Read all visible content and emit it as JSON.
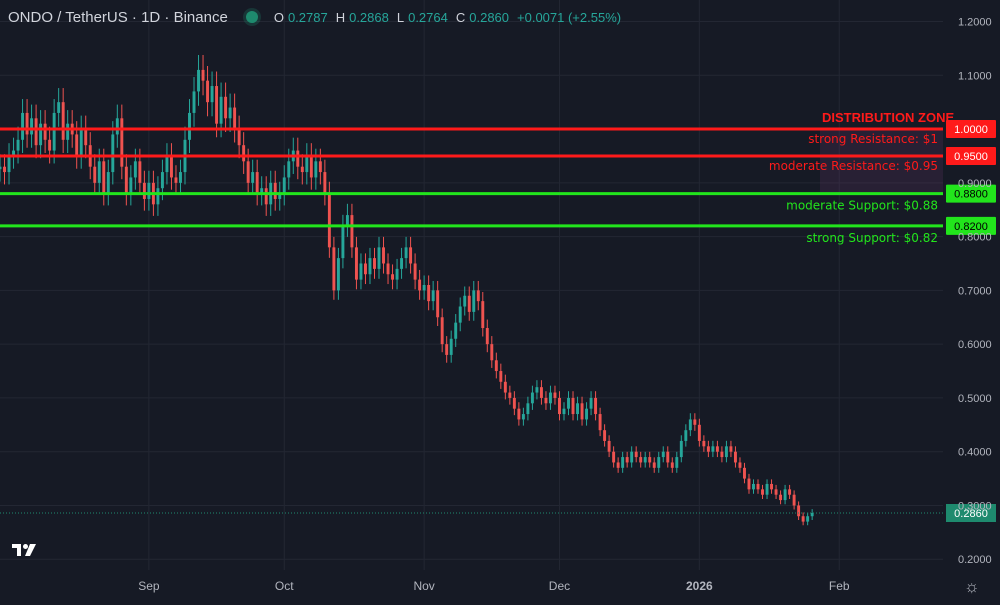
{
  "header": {
    "symbol_line": "ONDO / TetherUS · 1D · Binance",
    "open_label": "O",
    "open": "0.2787",
    "high_label": "H",
    "high": "0.2868",
    "low_label": "L",
    "low": "0.2764",
    "close_label": "C",
    "close": "0.2860",
    "change": "+0.0071 (+2.55%)"
  },
  "colors": {
    "background": "#161a25",
    "grid": "#232733",
    "up": "#26a69a",
    "down": "#ef5350",
    "resistance": "#ff1a1a",
    "support": "#22e51c",
    "last_price": "#1e8a6e"
  },
  "chart_data": {
    "type": "candlestick",
    "title": "",
    "ylim": [
      0.18,
      1.24
    ],
    "y_ticks": [
      "1.2000",
      "1.1000",
      "0.9000",
      "0.8000",
      "0.7000",
      "0.6000",
      "0.5000",
      "0.4000",
      "0.3000",
      "0.2000"
    ],
    "x_ticks": [
      "Sep",
      "Oct",
      "Nov",
      "Dec",
      "2026",
      "Feb"
    ],
    "x_range": [
      "2025-07-30",
      "2026-02-24"
    ],
    "x_tick_dates": [
      "2025-09-01",
      "2025-10-01",
      "2025-11-01",
      "2025-12-01",
      "2026-01-01",
      "2026-02-01"
    ],
    "levels": [
      {
        "price": 1.0,
        "label": "strong Resistance: $1",
        "axis_label": "1.0000",
        "kind": "resistance"
      },
      {
        "price": 0.95,
        "label": "moderate Resistance: $0.95",
        "axis_label": "0.9500",
        "kind": "resistance"
      },
      {
        "price": 0.88,
        "label": "moderate Support: $0.88",
        "axis_label": "0.8800",
        "kind": "support"
      },
      {
        "price": 0.82,
        "label": "strong Support: $0.82",
        "axis_label": "0.8200",
        "kind": "support"
      }
    ],
    "zone_label": "DISTRIBUTION ZONE",
    "last_price": "0.2860",
    "candles_start": "2025-07-30",
    "closes": [
      0.93,
      0.92,
      0.95,
      0.96,
      0.98,
      1.03,
      0.99,
      1.02,
      0.97,
      1.01,
      0.98,
      0.96,
      1.03,
      1.05,
      0.98,
      1.01,
      0.99,
      0.95,
      1.0,
      0.97,
      0.93,
      0.9,
      0.94,
      0.88,
      0.92,
      0.99,
      1.02,
      0.93,
      0.88,
      0.91,
      0.94,
      0.9,
      0.87,
      0.9,
      0.86,
      0.89,
      0.92,
      0.95,
      0.91,
      0.9,
      0.92,
      0.98,
      1.03,
      1.07,
      1.11,
      1.09,
      1.05,
      1.08,
      1.01,
      1.06,
      1.02,
      1.04,
      1.0,
      0.97,
      0.94,
      0.9,
      0.92,
      0.88,
      0.89,
      0.86,
      0.9,
      0.87,
      0.88,
      0.91,
      0.94,
      0.96,
      0.93,
      0.92,
      0.95,
      0.91,
      0.94,
      0.92,
      0.88,
      0.78,
      0.7,
      0.76,
      0.82,
      0.84,
      0.78,
      0.72,
      0.75,
      0.73,
      0.76,
      0.74,
      0.78,
      0.75,
      0.73,
      0.72,
      0.74,
      0.76,
      0.78,
      0.75,
      0.72,
      0.7,
      0.71,
      0.68,
      0.7,
      0.65,
      0.6,
      0.58,
      0.61,
      0.64,
      0.67,
      0.69,
      0.66,
      0.7,
      0.68,
      0.63,
      0.6,
      0.57,
      0.55,
      0.53,
      0.51,
      0.5,
      0.48,
      0.46,
      0.47,
      0.49,
      0.51,
      0.52,
      0.5,
      0.49,
      0.51,
      0.5,
      0.47,
      0.48,
      0.5,
      0.47,
      0.49,
      0.46,
      0.48,
      0.5,
      0.47,
      0.44,
      0.42,
      0.4,
      0.38,
      0.37,
      0.39,
      0.38,
      0.4,
      0.39,
      0.38,
      0.39,
      0.38,
      0.37,
      0.39,
      0.4,
      0.38,
      0.37,
      0.39,
      0.42,
      0.44,
      0.46,
      0.45,
      0.42,
      0.41,
      0.4,
      0.41,
      0.4,
      0.39,
      0.41,
      0.4,
      0.38,
      0.37,
      0.35,
      0.33,
      0.34,
      0.33,
      0.32,
      0.34,
      0.33,
      0.32,
      0.31,
      0.33,
      0.32,
      0.3,
      0.28,
      0.27,
      0.28,
      0.286
    ]
  }
}
